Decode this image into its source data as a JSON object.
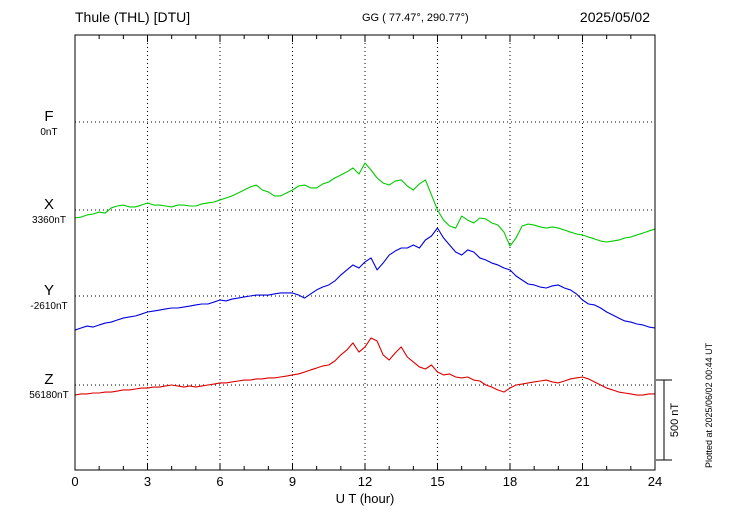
{
  "header": {
    "station": "Thule (THL)  [DTU]",
    "coordinates": "GG ( 77.47°, 290.77°)",
    "date": "2025/05/02"
  },
  "axis": {
    "xlabel": "U T (hour)"
  },
  "scale_bar": {
    "label": "500 nT"
  },
  "plotted_at": "Plotted at 2025/06/02 00:44 UT",
  "chart_data": {
    "type": "line",
    "title": "Thule (THL) [DTU] magnetogram 2025/05/02",
    "xlabel": "U T (hour)",
    "x_range": [
      0,
      24
    ],
    "x_ticks": [
      0,
      3,
      6,
      9,
      12,
      15,
      18,
      21,
      24
    ],
    "sample_interval_hours": 0.25,
    "scale_nT_per_division": 500,
    "grid": "dotted",
    "series": [
      {
        "id": "F",
        "label": "F",
        "baseline_label": "0nT",
        "baseline_nT": 0,
        "color": "#FFA500",
        "values_offset_nT": []
      },
      {
        "id": "X",
        "label": "X",
        "baseline_label": "3360nT",
        "baseline_nT": 3360,
        "color": "#00CC00",
        "values_offset_nT": [
          -50,
          -44,
          -31,
          -25,
          -13,
          -19,
          13,
          25,
          31,
          19,
          19,
          31,
          44,
          31,
          31,
          25,
          19,
          31,
          31,
          25,
          25,
          38,
          44,
          50,
          63,
          75,
          88,
          106,
          125,
          144,
          156,
          125,
          113,
          88,
          88,
          106,
          125,
          150,
          156,
          138,
          138,
          163,
          175,
          200,
          219,
          238,
          263,
          225,
          294,
          250,
          200,
          169,
          156,
          181,
          188,
          150,
          125,
          163,
          188,
          94,
          0,
          -63,
          -100,
          -113,
          -38,
          -63,
          -81,
          -50,
          -56,
          -81,
          -94,
          -138,
          -225,
          -175,
          -100,
          -88,
          -94,
          -106,
          -113,
          -106,
          -113,
          -125,
          -138,
          -150,
          -156,
          -169,
          -181,
          -194,
          -200,
          -194,
          -188,
          -175,
          -169,
          -156,
          -144,
          -131,
          -119
        ]
      },
      {
        "id": "Y",
        "label": "Y",
        "baseline_label": "-2610nT",
        "baseline_nT": -2610,
        "color": "#0000DD",
        "values_offset_nT": [
          -213,
          -200,
          -188,
          -194,
          -181,
          -169,
          -163,
          -150,
          -138,
          -131,
          -125,
          -113,
          -100,
          -94,
          -88,
          -81,
          -75,
          -75,
          -69,
          -63,
          -56,
          -50,
          -50,
          -38,
          -25,
          -31,
          -19,
          -13,
          -6,
          0,
          6,
          6,
          6,
          13,
          19,
          19,
          19,
          6,
          -13,
          13,
          38,
          56,
          69,
          94,
          131,
          163,
          194,
          175,
          213,
          238,
          163,
          206,
          256,
          281,
          300,
          300,
          319,
          300,
          350,
          375,
          425,
          363,
          319,
          275,
          256,
          288,
          275,
          238,
          225,
          206,
          194,
          175,
          163,
          125,
          100,
          75,
          69,
          56,
          50,
          63,
          69,
          50,
          38,
          13,
          -25,
          -50,
          -56,
          -75,
          -100,
          -119,
          -138,
          -156,
          -163,
          -175,
          -181,
          -194,
          -200
        ]
      },
      {
        "id": "Z",
        "label": "Z",
        "baseline_label": "56180nT",
        "baseline_nT": 56180,
        "color": "#DD0000",
        "values_offset_nT": [
          -63,
          -56,
          -56,
          -50,
          -50,
          -44,
          -44,
          -38,
          -31,
          -31,
          -25,
          -19,
          -19,
          -13,
          -13,
          -6,
          0,
          -6,
          -13,
          -6,
          -13,
          -6,
          0,
          6,
          13,
          13,
          19,
          25,
          31,
          31,
          38,
          38,
          44,
          44,
          50,
          56,
          63,
          69,
          81,
          94,
          106,
          119,
          125,
          150,
          188,
          219,
          263,
          206,
          238,
          294,
          275,
          188,
          156,
          200,
          238,
          175,
          144,
          113,
          100,
          125,
          81,
          63,
          69,
          50,
          44,
          50,
          31,
          25,
          0,
          -13,
          -31,
          -44,
          -19,
          0,
          6,
          13,
          19,
          25,
          31,
          19,
          13,
          25,
          38,
          44,
          50,
          38,
          19,
          0,
          -19,
          -31,
          -44,
          -50,
          -56,
          -63,
          -63,
          -56,
          -56
        ]
      }
    ]
  }
}
